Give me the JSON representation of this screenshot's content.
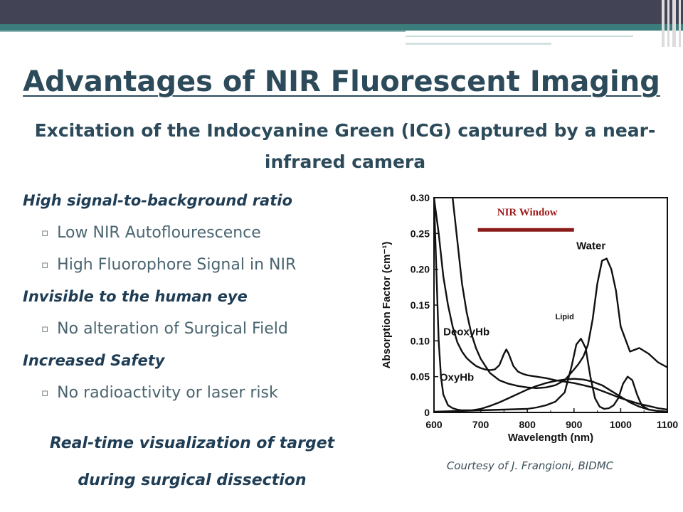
{
  "slide": {
    "title": "Advantages of NIR Fluorescent Imaging",
    "subtitle": "Excitation of the Indocyanine Green (ICG) captured by a near-infrared camera",
    "bullets": [
      {
        "type": "head",
        "text": "High signal-to-background ratio"
      },
      {
        "type": "sub",
        "text": "Low NIR Autoflourescence"
      },
      {
        "type": "sub",
        "text": "High Fluorophore Signal in NIR"
      },
      {
        "type": "head",
        "text": "Invisible to the human eye"
      },
      {
        "type": "sub",
        "text": "No alteration of Surgical Field"
      },
      {
        "type": "head",
        "text": "Increased Safety"
      },
      {
        "type": "sub",
        "text": "No radioactivity or laser risk"
      }
    ],
    "bullet_marker": "▫",
    "realtime_line1": "Real-time visualization of target",
    "realtime_line2": "during surgical dissection",
    "courtesy": "Courtesy of J. Frangioni, BIDMC"
  },
  "colors": {
    "title": "#2c4a5a",
    "nir_window": "#8b1a1a",
    "header_bar": "#424456",
    "header_stripe": "#3a7d7c"
  },
  "chart_data": {
    "type": "line",
    "xlabel": "Wavelength (nm)",
    "ylabel": "Absorption Factor (cm⁻¹)",
    "xlim": [
      600,
      1100
    ],
    "ylim": [
      0,
      0.3
    ],
    "x_ticks": [
      600,
      700,
      800,
      900,
      1000,
      1100
    ],
    "y_ticks": [
      0,
      0.05,
      0.1,
      0.15,
      0.2,
      0.25,
      0.3
    ],
    "y_tick_labels": [
      "0",
      "0.05",
      "0.10",
      "0.15",
      "0.20",
      "0.25",
      "0.30"
    ],
    "nir_window": {
      "label": "NIR Window",
      "range": [
        700,
        900
      ]
    },
    "series": [
      {
        "name": "DeoxyHb",
        "label_at": [
          620,
          0.108
        ],
        "x": [
          600,
          610,
          620,
          630,
          640,
          650,
          660,
          670,
          680,
          690,
          700,
          710,
          720,
          730,
          740,
          750,
          755,
          760,
          770,
          780,
          790,
          800,
          820,
          840,
          860,
          880,
          900,
          920,
          940,
          960,
          980,
          1000,
          1020,
          1040,
          1060,
          1080,
          1100
        ],
        "y": [
          0.3,
          0.25,
          0.19,
          0.15,
          0.12,
          0.098,
          0.085,
          0.076,
          0.07,
          0.065,
          0.062,
          0.06,
          0.059,
          0.06,
          0.066,
          0.082,
          0.088,
          0.082,
          0.065,
          0.057,
          0.054,
          0.052,
          0.05,
          0.048,
          0.045,
          0.043,
          0.041,
          0.038,
          0.035,
          0.03,
          0.025,
          0.02,
          0.016,
          0.012,
          0.009,
          0.006,
          0.004
        ]
      },
      {
        "name": "OxyHb",
        "label_at": [
          612,
          0.044
        ],
        "x": [
          600,
          605,
          610,
          615,
          620,
          630,
          640,
          650,
          660,
          670,
          680,
          690,
          700,
          720,
          740,
          760,
          780,
          800,
          820,
          840,
          860,
          880,
          900,
          920,
          940,
          960,
          980,
          1000,
          1020,
          1040,
          1060,
          1080,
          1100
        ],
        "y": [
          0.3,
          0.2,
          0.1,
          0.05,
          0.025,
          0.01,
          0.006,
          0.004,
          0.003,
          0.003,
          0.003,
          0.004,
          0.005,
          0.009,
          0.014,
          0.02,
          0.026,
          0.032,
          0.037,
          0.041,
          0.044,
          0.046,
          0.047,
          0.046,
          0.043,
          0.038,
          0.03,
          0.022,
          0.014,
          0.008,
          0.004,
          0.002,
          0.001
        ]
      },
      {
        "name": "Water",
        "label_at": [
          905,
          0.228
        ],
        "x": [
          640,
          650,
          660,
          670,
          680,
          690,
          700,
          720,
          740,
          760,
          780,
          800,
          820,
          840,
          860,
          880,
          900,
          910,
          920,
          930,
          940,
          950,
          960,
          970,
          980,
          990,
          1000,
          1020,
          1040,
          1060,
          1080,
          1100
        ],
        "y": [
          0.3,
          0.24,
          0.18,
          0.14,
          0.11,
          0.09,
          0.075,
          0.055,
          0.045,
          0.04,
          0.037,
          0.035,
          0.034,
          0.035,
          0.038,
          0.045,
          0.06,
          0.068,
          0.078,
          0.095,
          0.13,
          0.18,
          0.212,
          0.215,
          0.2,
          0.17,
          0.12,
          0.085,
          0.09,
          0.082,
          0.07,
          0.063
        ]
      },
      {
        "name": "Lipid",
        "label_at": [
          860,
          0.13
        ],
        "x": [
          600,
          650,
          700,
          750,
          800,
          820,
          840,
          860,
          880,
          895,
          905,
          915,
          925,
          935,
          945,
          955,
          965,
          975,
          985,
          995,
          1005,
          1015,
          1025,
          1035,
          1045,
          1060,
          1080,
          1100
        ],
        "y": [
          0.001,
          0.002,
          0.003,
          0.004,
          0.005,
          0.007,
          0.01,
          0.015,
          0.028,
          0.065,
          0.095,
          0.103,
          0.09,
          0.05,
          0.02,
          0.008,
          0.005,
          0.006,
          0.01,
          0.02,
          0.04,
          0.05,
          0.045,
          0.025,
          0.01,
          0.004,
          0.002,
          0.001
        ]
      }
    ]
  }
}
